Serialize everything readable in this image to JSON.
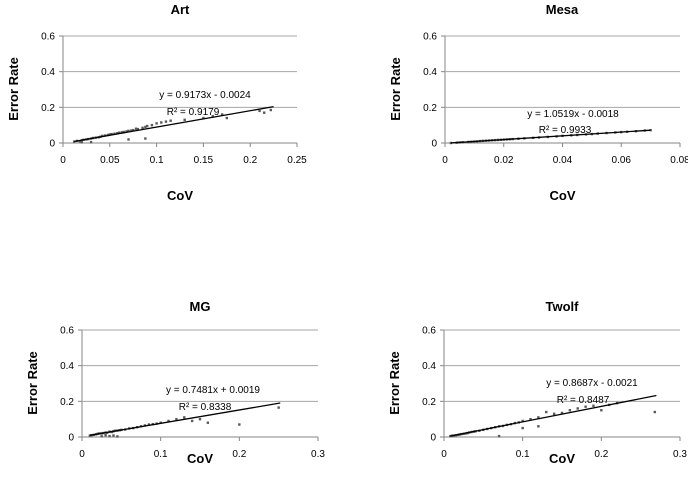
{
  "chart_data": [
    {
      "type": "scatter",
      "title": "Art",
      "xlabel": "CoV",
      "ylabel": "Error Rate",
      "xlim": [
        0,
        0.25
      ],
      "ylim": [
        0,
        0.6
      ],
      "xticks": [
        "0",
        "0.05",
        "0.1",
        "0.15",
        "0.2",
        "0.25"
      ],
      "yticks": [
        "0",
        "0.2",
        "0.4",
        "0.6"
      ],
      "grid": "horizontal",
      "trendline": {
        "slope": 0.9173,
        "intercept": -0.0024,
        "x_range": [
          0.012,
          0.225
        ]
      },
      "equation": "y = 0.9173x - 0.0024",
      "r2": "R² = 0.9179",
      "points": [
        [
          0.012,
          0.008
        ],
        [
          0.015,
          0.012
        ],
        [
          0.018,
          0.01
        ],
        [
          0.02,
          0.015
        ],
        [
          0.022,
          0.018
        ],
        [
          0.025,
          0.02
        ],
        [
          0.027,
          0.022
        ],
        [
          0.03,
          0.025
        ],
        [
          0.032,
          0.028
        ],
        [
          0.035,
          0.03
        ],
        [
          0.038,
          0.032
        ],
        [
          0.04,
          0.035
        ],
        [
          0.042,
          0.04
        ],
        [
          0.045,
          0.042
        ],
        [
          0.048,
          0.045
        ],
        [
          0.05,
          0.048
        ],
        [
          0.052,
          0.05
        ],
        [
          0.055,
          0.052
        ],
        [
          0.058,
          0.055
        ],
        [
          0.06,
          0.058
        ],
        [
          0.063,
          0.06
        ],
        [
          0.065,
          0.062
        ],
        [
          0.068,
          0.065
        ],
        [
          0.07,
          0.068
        ],
        [
          0.073,
          0.07
        ],
        [
          0.075,
          0.072
        ],
        [
          0.078,
          0.08
        ],
        [
          0.08,
          0.078
        ],
        [
          0.085,
          0.085
        ],
        [
          0.088,
          0.09
        ],
        [
          0.09,
          0.095
        ],
        [
          0.095,
          0.1
        ],
        [
          0.1,
          0.11
        ],
        [
          0.105,
          0.115
        ],
        [
          0.11,
          0.12
        ],
        [
          0.115,
          0.125
        ],
        [
          0.07,
          0.02
        ],
        [
          0.088,
          0.025
        ],
        [
          0.03,
          0.005
        ],
        [
          0.02,
          0.004
        ],
        [
          0.13,
          0.13
        ],
        [
          0.15,
          0.14
        ],
        [
          0.16,
          0.15
        ],
        [
          0.17,
          0.16
        ],
        [
          0.175,
          0.14
        ],
        [
          0.21,
          0.18
        ],
        [
          0.215,
          0.17
        ],
        [
          0.222,
          0.185
        ]
      ]
    },
    {
      "type": "scatter",
      "title": "Mesa",
      "xlabel": "CoV",
      "ylabel": "Error Rate",
      "xlim": [
        0,
        0.08
      ],
      "ylim": [
        0,
        0.6
      ],
      "xticks": [
        "0",
        "0.02",
        "0.04",
        "0.06",
        "0.08"
      ],
      "yticks": [
        "0",
        "0.2",
        "0.4",
        "0.6"
      ],
      "grid": "horizontal",
      "trendline": {
        "slope": 1.0519,
        "intercept": -0.0018,
        "x_range": [
          0.002,
          0.07
        ]
      },
      "equation": "y = 1.0519x - 0.0018",
      "r2": "R² = 0.9933",
      "points": [
        [
          0.002,
          0.0
        ],
        [
          0.004,
          0.002
        ],
        [
          0.005,
          0.003
        ],
        [
          0.006,
          0.004
        ],
        [
          0.008,
          0.006
        ],
        [
          0.009,
          0.007
        ],
        [
          0.01,
          0.008
        ],
        [
          0.011,
          0.009
        ],
        [
          0.012,
          0.011
        ],
        [
          0.013,
          0.012
        ],
        [
          0.014,
          0.013
        ],
        [
          0.015,
          0.014
        ],
        [
          0.016,
          0.015
        ],
        [
          0.017,
          0.016
        ],
        [
          0.018,
          0.017
        ],
        [
          0.019,
          0.018
        ],
        [
          0.02,
          0.019
        ],
        [
          0.021,
          0.02
        ],
        [
          0.022,
          0.021
        ],
        [
          0.023,
          0.022
        ],
        [
          0.025,
          0.024
        ],
        [
          0.027,
          0.026
        ],
        [
          0.03,
          0.029
        ],
        [
          0.032,
          0.031
        ],
        [
          0.035,
          0.034
        ],
        [
          0.038,
          0.037
        ],
        [
          0.04,
          0.04
        ],
        [
          0.043,
          0.043
        ],
        [
          0.045,
          0.045
        ],
        [
          0.048,
          0.048
        ],
        [
          0.05,
          0.05
        ],
        [
          0.052,
          0.053
        ],
        [
          0.055,
          0.056
        ],
        [
          0.058,
          0.059
        ],
        [
          0.06,
          0.061
        ],
        [
          0.062,
          0.063
        ],
        [
          0.065,
          0.066
        ],
        [
          0.068,
          0.07
        ],
        [
          0.07,
          0.072
        ]
      ]
    },
    {
      "type": "scatter",
      "title": "MG",
      "xlabel": "CoV",
      "ylabel": "Error Rate",
      "xlim": [
        0,
        0.3
      ],
      "ylim": [
        0,
        0.6
      ],
      "xticks": [
        "0",
        "0.1",
        "0.2",
        "0.3"
      ],
      "yticks": [
        "0",
        "0.2",
        "0.4",
        "0.6"
      ],
      "grid": "horizontal",
      "trendline": {
        "slope": 0.7481,
        "intercept": 0.0019,
        "x_range": [
          0.01,
          0.252
        ]
      },
      "equation": "y = 0.7481x + 0.0019",
      "r2": "R² = 0.8338",
      "points": [
        [
          0.01,
          0.008
        ],
        [
          0.012,
          0.01
        ],
        [
          0.015,
          0.012
        ],
        [
          0.018,
          0.015
        ],
        [
          0.02,
          0.018
        ],
        [
          0.022,
          0.02
        ],
        [
          0.025,
          0.02
        ],
        [
          0.027,
          0.022
        ],
        [
          0.03,
          0.025
        ],
        [
          0.032,
          0.024
        ],
        [
          0.035,
          0.03
        ],
        [
          0.038,
          0.028
        ],
        [
          0.04,
          0.032
        ],
        [
          0.042,
          0.035
        ],
        [
          0.045,
          0.036
        ],
        [
          0.048,
          0.038
        ],
        [
          0.05,
          0.04
        ],
        [
          0.055,
          0.042
        ],
        [
          0.06,
          0.048
        ],
        [
          0.065,
          0.05
        ],
        [
          0.07,
          0.055
        ],
        [
          0.075,
          0.06
        ],
        [
          0.08,
          0.065
        ],
        [
          0.085,
          0.07
        ],
        [
          0.09,
          0.072
        ],
        [
          0.095,
          0.075
        ],
        [
          0.1,
          0.08
        ],
        [
          0.03,
          0.01
        ],
        [
          0.035,
          0.005
        ],
        [
          0.04,
          0.008
        ],
        [
          0.045,
          0.003
        ],
        [
          0.025,
          0.004
        ],
        [
          0.11,
          0.09
        ],
        [
          0.12,
          0.1
        ],
        [
          0.13,
          0.11
        ],
        [
          0.14,
          0.09
        ],
        [
          0.15,
          0.1
        ],
        [
          0.16,
          0.08
        ],
        [
          0.2,
          0.07
        ],
        [
          0.25,
          0.165
        ]
      ]
    },
    {
      "type": "scatter",
      "title": "Twolf",
      "xlabel": "CoV",
      "ylabel": "Error Rate",
      "xlim": [
        0,
        0.3
      ],
      "ylim": [
        0,
        0.6
      ],
      "xticks": [
        "0",
        "0.1",
        "0.2",
        "0.3"
      ],
      "yticks": [
        "0",
        "0.2",
        "0.4",
        "0.6"
      ],
      "grid": "horizontal",
      "trendline": {
        "slope": 0.8687,
        "intercept": -0.0021,
        "x_range": [
          0.008,
          0.27
        ]
      },
      "equation": "y = 0.8687x - 0.0021",
      "r2": "R² = 0.8487",
      "points": [
        [
          0.008,
          0.005
        ],
        [
          0.01,
          0.007
        ],
        [
          0.012,
          0.008
        ],
        [
          0.015,
          0.01
        ],
        [
          0.018,
          0.012
        ],
        [
          0.02,
          0.014
        ],
        [
          0.022,
          0.016
        ],
        [
          0.025,
          0.018
        ],
        [
          0.028,
          0.02
        ],
        [
          0.03,
          0.022
        ],
        [
          0.032,
          0.025
        ],
        [
          0.035,
          0.028
        ],
        [
          0.038,
          0.03
        ],
        [
          0.04,
          0.032
        ],
        [
          0.045,
          0.035
        ],
        [
          0.05,
          0.04
        ],
        [
          0.055,
          0.045
        ],
        [
          0.06,
          0.05
        ],
        [
          0.065,
          0.055
        ],
        [
          0.07,
          0.06
        ],
        [
          0.075,
          0.062
        ],
        [
          0.08,
          0.068
        ],
        [
          0.085,
          0.072
        ],
        [
          0.09,
          0.078
        ],
        [
          0.095,
          0.082
        ],
        [
          0.1,
          0.09
        ],
        [
          0.11,
          0.1
        ],
        [
          0.12,
          0.11
        ],
        [
          0.13,
          0.14
        ],
        [
          0.14,
          0.13
        ],
        [
          0.15,
          0.135
        ],
        [
          0.16,
          0.15
        ],
        [
          0.17,
          0.16
        ],
        [
          0.18,
          0.17
        ],
        [
          0.19,
          0.175
        ],
        [
          0.2,
          0.15
        ],
        [
          0.21,
          0.18
        ],
        [
          0.07,
          0.005
        ],
        [
          0.12,
          0.06
        ],
        [
          0.1,
          0.05
        ],
        [
          0.22,
          0.19
        ],
        [
          0.268,
          0.14
        ]
      ]
    }
  ]
}
